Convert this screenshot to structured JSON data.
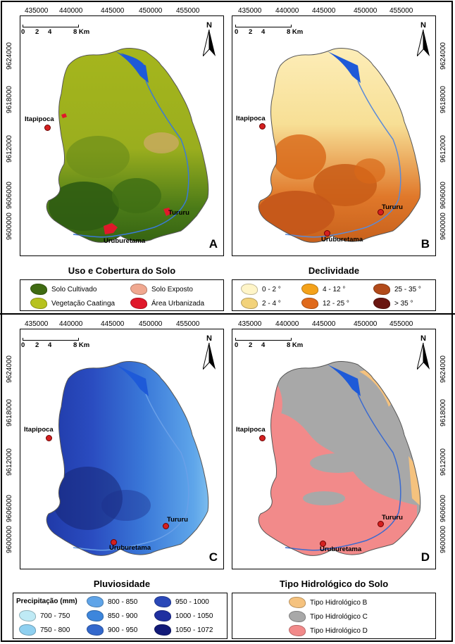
{
  "x_ticks": [
    "435000",
    "440000",
    "445000",
    "450000",
    "455000"
  ],
  "y_ticks": [
    "9624000",
    "9618000",
    "9612000",
    "9606000",
    "9600000"
  ],
  "scale_labels": [
    "0",
    "2",
    "4",
    "8 Km"
  ],
  "north_label": "N",
  "places": {
    "itapipoca": "Itapipoca",
    "tururu": "Tururu",
    "uruburetama": "Uruburetama"
  },
  "panels": {
    "a": {
      "letter": "A",
      "title": "Uso e Cobertura do Solo"
    },
    "b": {
      "letter": "B",
      "title": "Declividade"
    },
    "c": {
      "letter": "C",
      "title": "Pluviosidade"
    },
    "d": {
      "letter": "D",
      "title": "Tipo Hidrológico do Solo"
    }
  },
  "legends": {
    "a": [
      {
        "label": "Solo Cultivado",
        "color": "#3f6b12"
      },
      {
        "label": "Solo Exposto",
        "color": "#f0a890"
      },
      {
        "label": "Vegetação Caatinga",
        "color": "#b7c21e"
      },
      {
        "label": "Área Urbanizada",
        "color": "#e0182a"
      }
    ],
    "b": [
      {
        "label": "0 - 2 °",
        "color": "#fff5c8"
      },
      {
        "label": "4 - 12 °",
        "color": "#f4a21a"
      },
      {
        "label": "25 - 35 °",
        "color": "#b24a1a"
      },
      {
        "label": "2 - 4 °",
        "color": "#f2d27a"
      },
      {
        "label": "12 - 25 °",
        "color": "#e06a1c"
      },
      {
        "label": "> 35 °",
        "color": "#6a1510"
      }
    ],
    "c": {
      "header": "Precipitação (mm)",
      "items": [
        {
          "label": "800 - 850",
          "color": "#5fa4e8"
        },
        {
          "label": "950 - 1000",
          "color": "#2a48b8"
        },
        {
          "label": "700 - 750",
          "color": "#bfeaf5"
        },
        {
          "label": "850 - 900",
          "color": "#3d86dc"
        },
        {
          "label": "1000 - 1050",
          "color": "#1f2fa0"
        },
        {
          "label": "750 - 800",
          "color": "#8fd0f0"
        },
        {
          "label": "900 - 950",
          "color": "#3368cc"
        },
        {
          "label": "1050 - 1072",
          "color": "#121a78"
        }
      ]
    },
    "d": [
      {
        "label": "Tipo Hidrológico B",
        "color": "#f5c27e"
      },
      {
        "label": "Tipo Hidrológico C",
        "color": "#a8a8a8"
      },
      {
        "label": "Tipo Hidrológico D",
        "color": "#f28a8a"
      }
    ]
  }
}
